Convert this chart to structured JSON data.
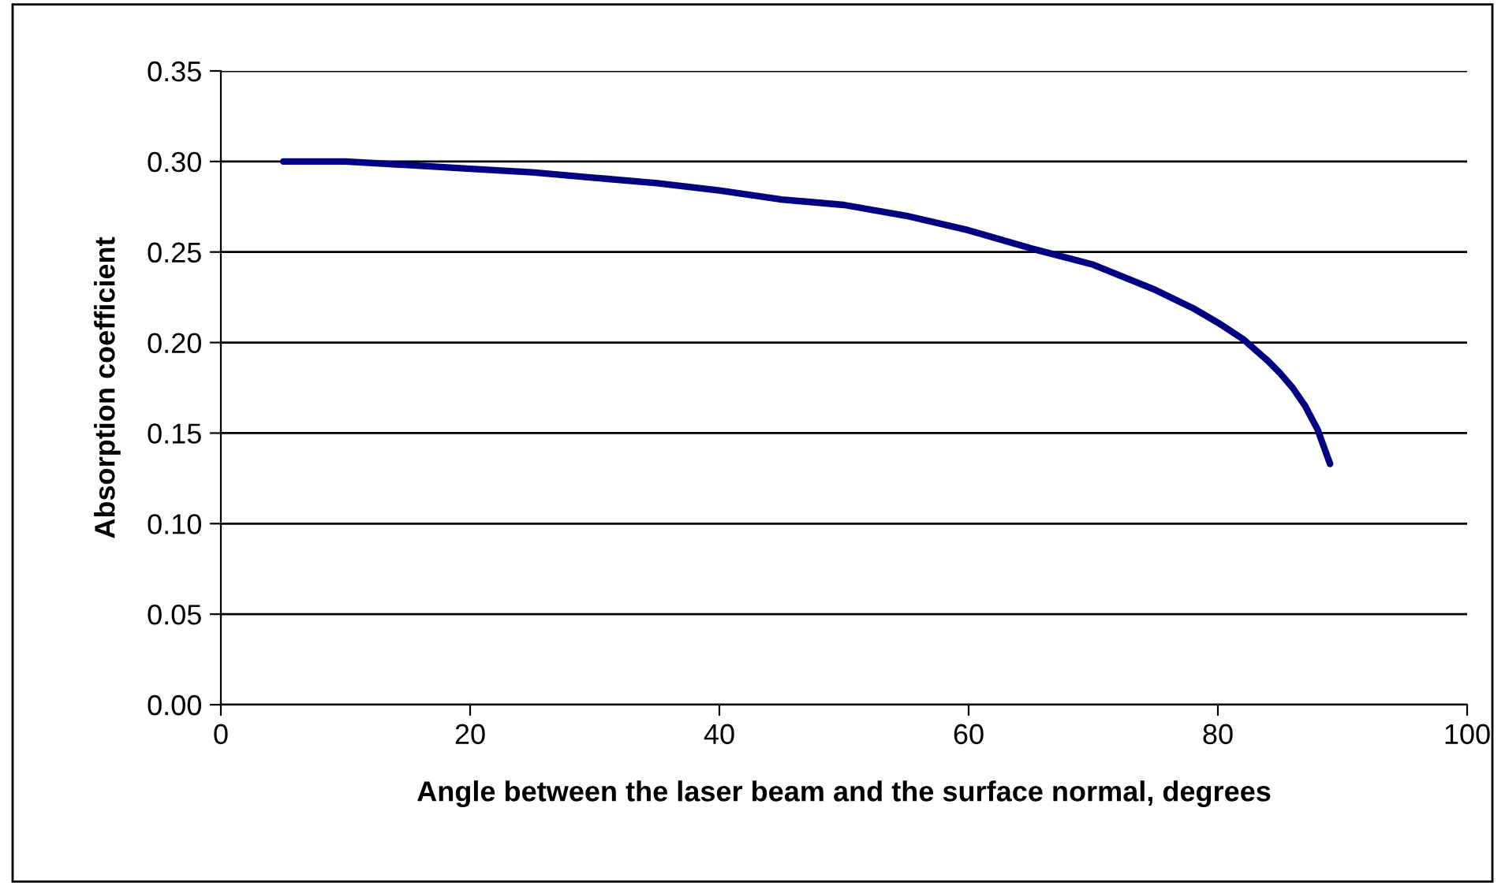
{
  "chart_data": {
    "type": "line",
    "xlabel": "Angle between the laser beam and the surface normal, degrees",
    "ylabel": "Absorption coefficient",
    "series": [
      {
        "color": "#000080",
        "x": [
          5,
          10,
          15,
          20,
          25,
          30,
          35,
          40,
          45,
          50,
          55,
          60,
          65,
          70,
          75,
          78,
          80,
          82,
          84,
          85,
          86,
          87,
          88,
          89
        ],
        "values": [
          0.3,
          0.3,
          0.298,
          0.296,
          0.294,
          0.291,
          0.288,
          0.284,
          0.279,
          0.276,
          0.27,
          0.262,
          0.252,
          0.243,
          0.229,
          0.219,
          0.211,
          0.202,
          0.19,
          0.183,
          0.175,
          0.165,
          0.152,
          0.133
        ]
      }
    ],
    "xlim": [
      0,
      100
    ],
    "xticks": [
      0,
      20,
      40,
      60,
      80,
      100
    ],
    "ylim": [
      0,
      0.35
    ],
    "yticks": [
      {
        "value": 0,
        "label": "0.00"
      },
      {
        "value": 0.05,
        "label": "0.05"
      },
      {
        "value": 0.1,
        "label": "0.10"
      },
      {
        "value": 0.15,
        "label": "0.15"
      },
      {
        "value": 0.2,
        "label": "0.20"
      },
      {
        "value": 0.25,
        "label": "0.25"
      },
      {
        "value": 0.3,
        "label": "0.30"
      },
      {
        "value": 0.35,
        "label": "0.35"
      }
    ],
    "grid": "y",
    "marker": "none",
    "line_style": "solid",
    "legend": false
  }
}
